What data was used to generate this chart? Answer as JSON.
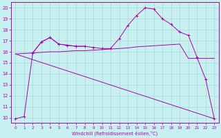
{
  "xlabel": "Windchill (Refroidissement éolien,°C)",
  "bg_color": "#c8f0f0",
  "grid_color": "#a8dada",
  "line_color": "#aa00aa",
  "xlim": [
    -0.5,
    23.5
  ],
  "ylim": [
    9.5,
    20.5
  ],
  "xticks": [
    0,
    1,
    2,
    3,
    4,
    5,
    6,
    7,
    8,
    9,
    10,
    11,
    12,
    13,
    14,
    15,
    16,
    17,
    18,
    19,
    20,
    21,
    22,
    23
  ],
  "yticks": [
    10,
    11,
    12,
    13,
    14,
    15,
    16,
    17,
    18,
    19,
    20
  ],
  "line1_x": [
    0,
    1,
    2,
    3,
    4,
    5,
    6,
    7,
    8,
    9,
    10,
    11,
    12,
    13,
    14,
    15,
    16,
    17,
    18,
    19,
    20,
    21,
    22,
    23
  ],
  "line1_y": [
    9.9,
    10.1,
    15.9,
    16.9,
    17.3,
    16.7,
    16.6,
    16.5,
    16.5,
    16.4,
    16.3,
    16.3,
    17.2,
    18.4,
    19.3,
    20.0,
    19.9,
    19.0,
    18.5,
    17.8,
    17.5,
    15.5,
    13.5,
    9.9
  ],
  "line2_x": [
    0,
    1,
    2,
    3,
    4,
    5,
    6,
    7,
    8,
    9,
    10,
    11,
    12,
    13,
    14,
    15,
    16,
    17,
    18,
    19,
    20,
    21,
    22,
    23
  ],
  "line2_y": [
    15.8,
    15.85,
    15.9,
    15.95,
    16.0,
    16.0,
    16.05,
    16.1,
    16.1,
    16.15,
    16.2,
    16.25,
    16.3,
    16.35,
    16.45,
    16.5,
    16.55,
    16.6,
    16.65,
    16.7,
    15.4,
    15.4,
    15.4,
    15.4
  ],
  "line3_x": [
    2,
    3,
    4,
    5,
    6,
    7,
    8
  ],
  "line3_y": [
    15.9,
    16.9,
    17.3,
    16.7,
    16.6,
    16.5,
    16.5
  ],
  "line4_x": [
    0,
    23
  ],
  "line4_y": [
    15.8,
    9.9
  ]
}
